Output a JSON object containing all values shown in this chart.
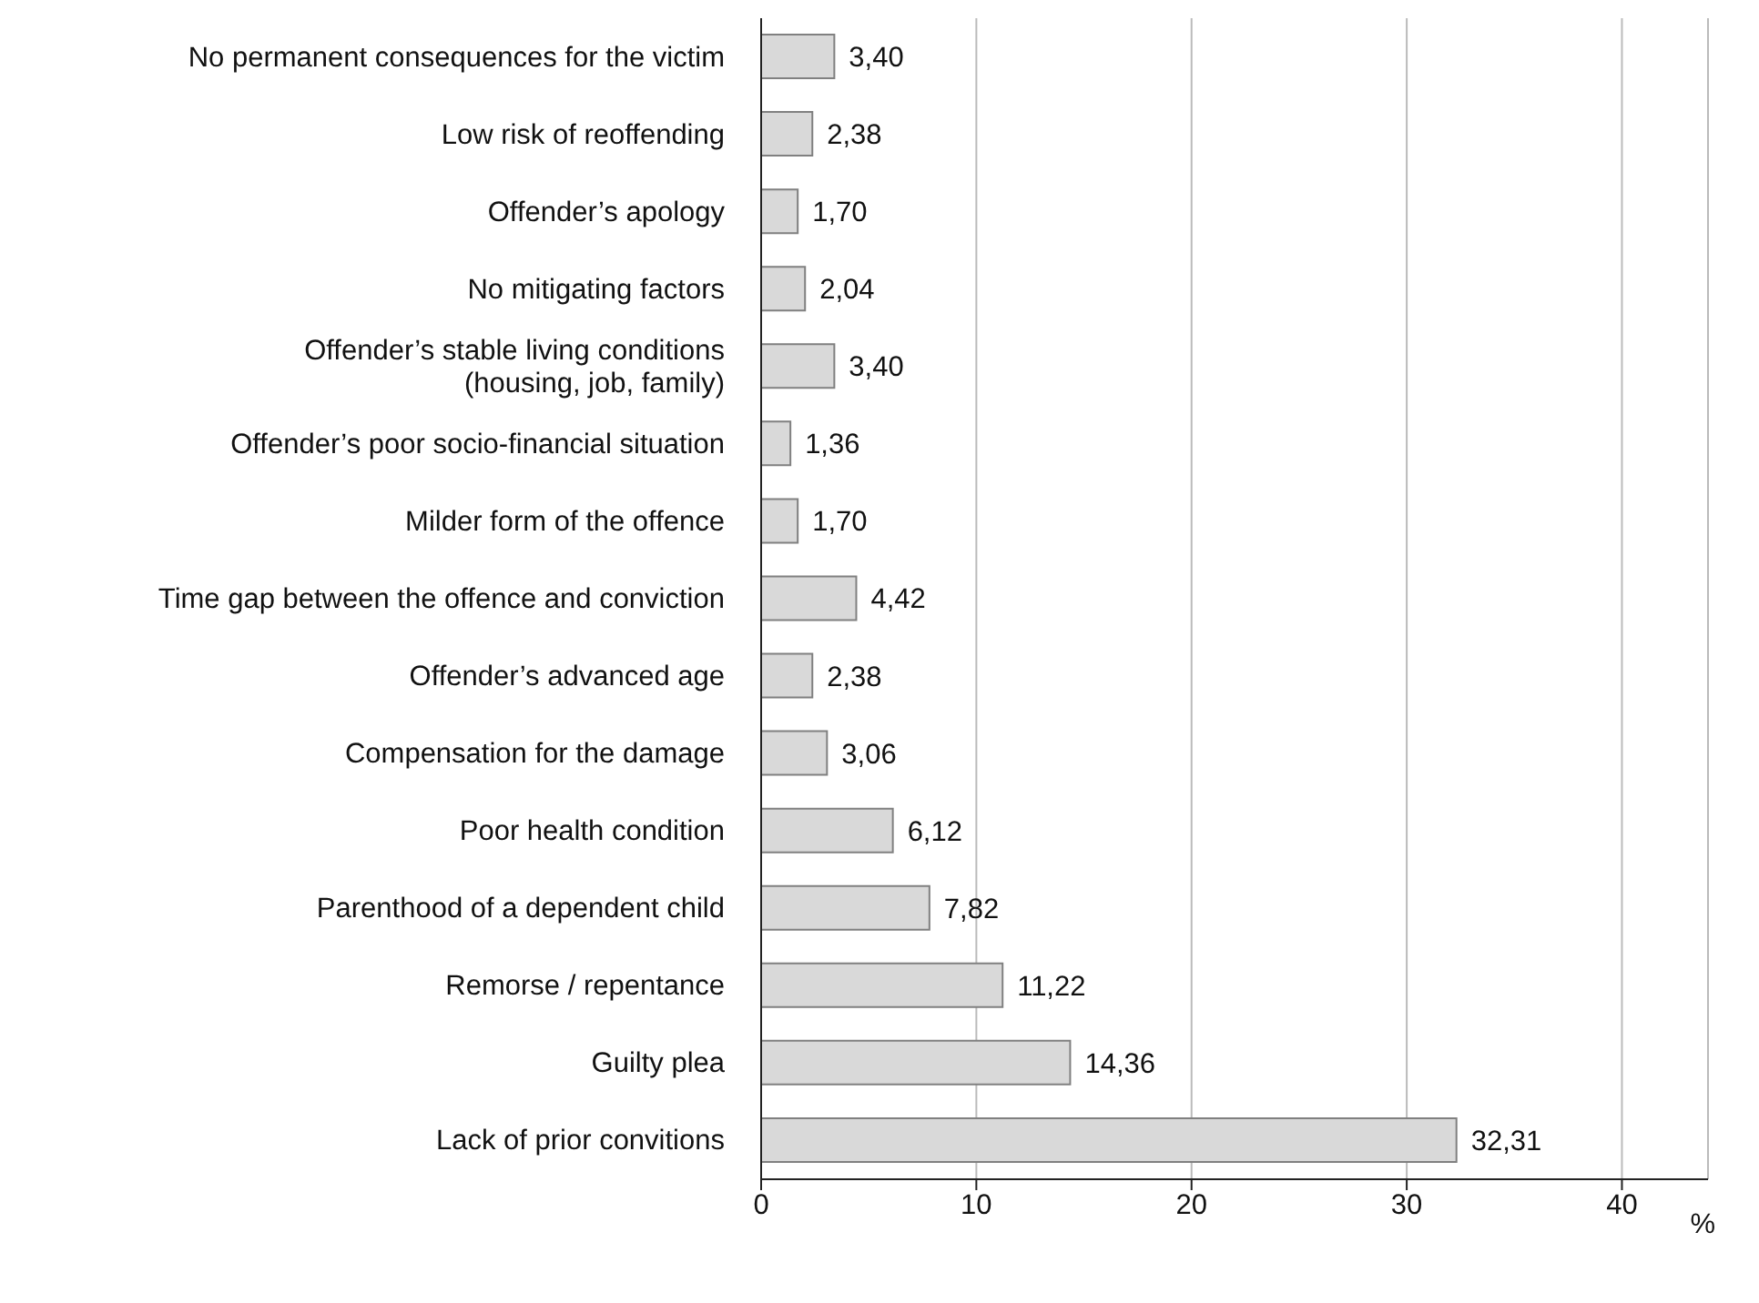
{
  "chart_data": {
    "type": "bar",
    "orientation": "horizontal",
    "categories": [
      "No permanent consequences for the victim",
      "Low risk of reoffending",
      "Offender’s apology",
      "No mitigating factors",
      "Offender’s stable living conditions\n(housing, job, family)",
      "Offender’s poor socio-financial situation",
      "Milder form of the offence",
      "Time gap between the offence and conviction",
      "Offender’s advanced age",
      "Compensation for the damage",
      "Poor health condition",
      "Parenthood of a dependent child",
      "Remorse / repentance",
      "Guilty plea",
      "Lack of prior convitions"
    ],
    "values": [
      3.4,
      2.38,
      1.7,
      2.04,
      3.4,
      1.36,
      1.7,
      4.42,
      2.38,
      3.06,
      6.12,
      7.82,
      11.22,
      14.36,
      32.31
    ],
    "value_labels": [
      "3,40",
      "2,38",
      "1,70",
      "2,04",
      "3,40",
      "1,36",
      "1,70",
      "4,42",
      "2,38",
      "3,06",
      "6,12",
      "7,82",
      "11,22",
      "14,36",
      "32,31"
    ],
    "color": "#d9d9d9",
    "xlabel": "%",
    "xlim": [
      0,
      44
    ],
    "xticks": [
      0,
      10,
      20,
      30,
      40
    ],
    "grid": "x",
    "legend": false
  }
}
